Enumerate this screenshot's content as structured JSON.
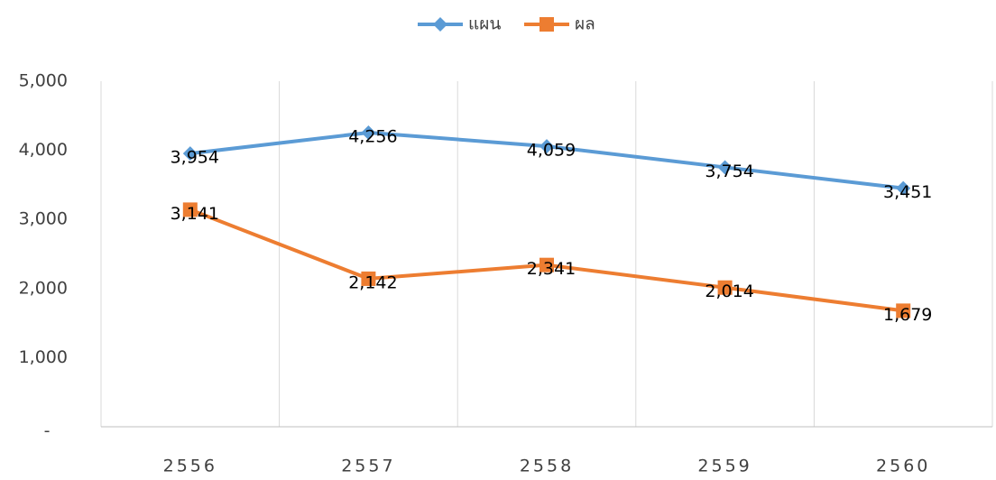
{
  "chart_data": {
    "type": "line",
    "categories": [
      "2556",
      "2557",
      "2558",
      "2559",
      "2560"
    ],
    "series": [
      {
        "name": "แผน",
        "color": "#5b9bd5",
        "marker": "diamond",
        "values": [
          3954,
          4256,
          4059,
          3754,
          3451
        ],
        "value_labels": [
          "3,954",
          "4,256",
          "4,059",
          "3,754",
          "3,451"
        ]
      },
      {
        "name": "ผล",
        "color": "#ed7d31",
        "marker": "square",
        "values": [
          3141,
          2142,
          2341,
          2014,
          1679
        ],
        "value_labels": [
          "3,141",
          "2,142",
          "2,341",
          "2,014",
          "1,679"
        ]
      }
    ],
    "ylim": [
      0,
      5000
    ],
    "yticks": [
      {
        "value": 0,
        "label": "-"
      },
      {
        "value": 1000,
        "label": "1,000"
      },
      {
        "value": 2000,
        "label": "2,000"
      },
      {
        "value": 3000,
        "label": "3,000"
      },
      {
        "value": 4000,
        "label": "4,000"
      },
      {
        "value": 5000,
        "label": "5,000"
      }
    ],
    "legend": "top"
  }
}
